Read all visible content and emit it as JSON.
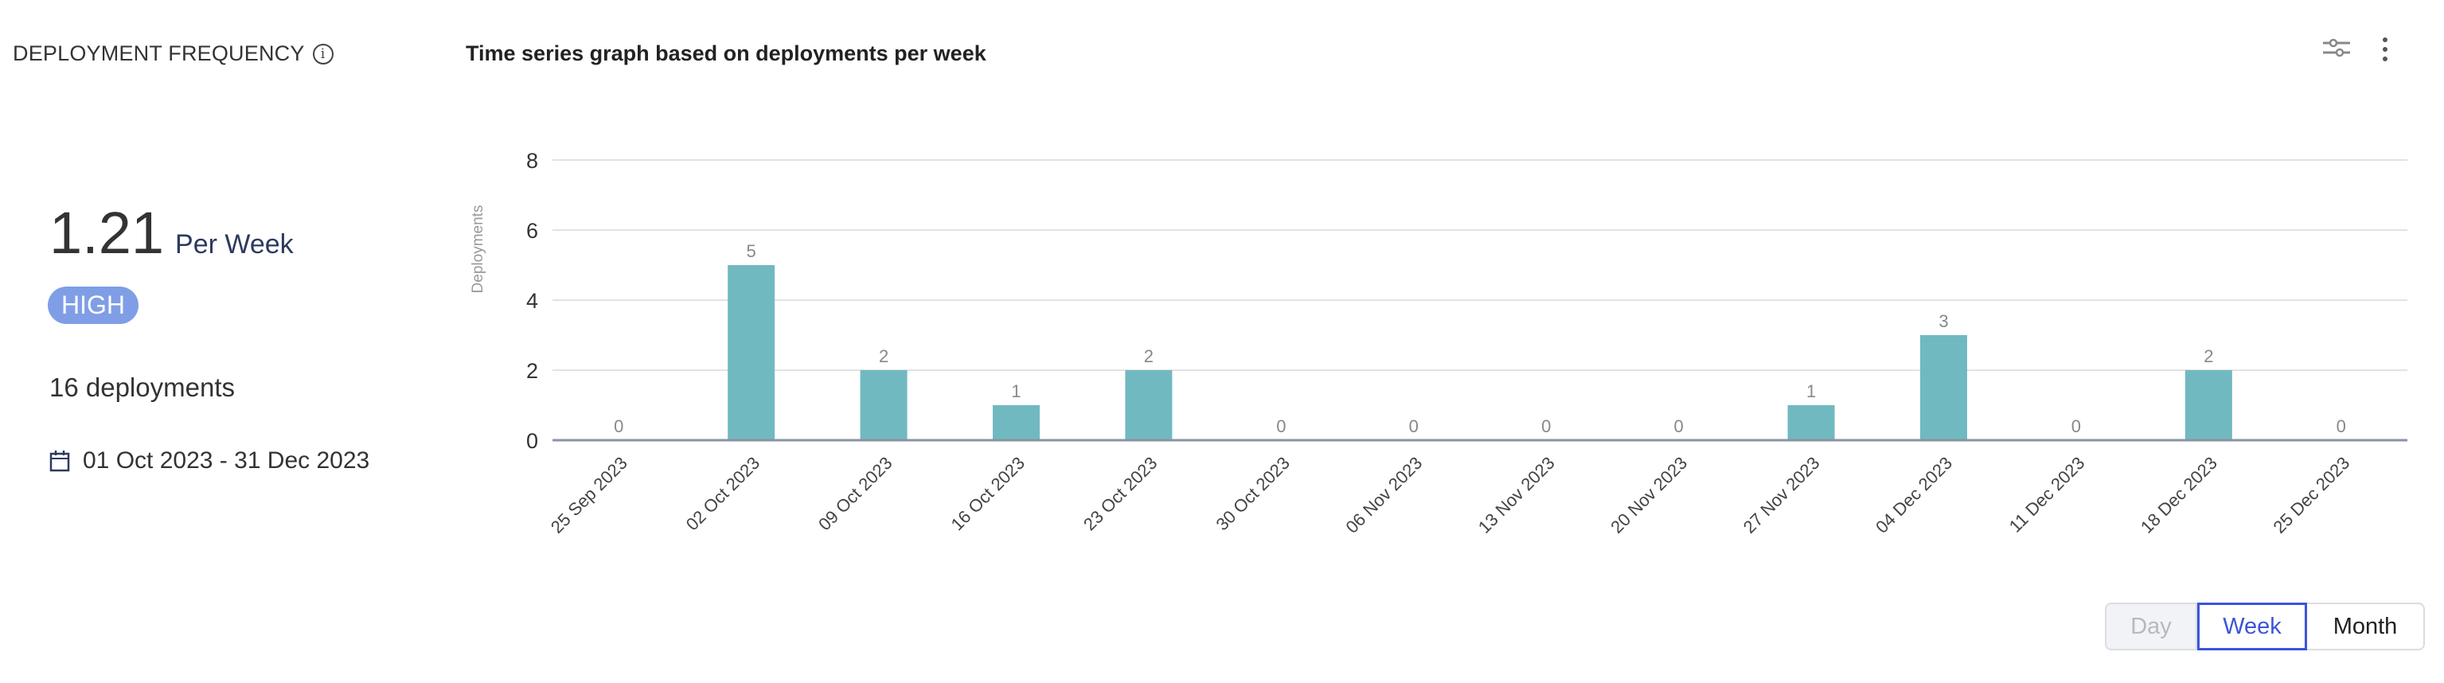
{
  "metric": {
    "title": "DEPLOYMENT FREQUENCY",
    "info_icon": "info-circle-icon",
    "value": "1.21",
    "unit": "Per Week",
    "badge": "HIGH",
    "badge_color": "#7f9ee6",
    "deployments": "16 deployments",
    "date_icon": "calendar-icon",
    "date_range": "01 Oct 2023 - 31 Dec 2023"
  },
  "header": {
    "chart_title": "Time series graph based on deployments per week",
    "filter_icon": "sliders-icon",
    "menu_icon": "kebab-menu-icon"
  },
  "toggle": {
    "options": [
      "Day",
      "Week",
      "Month"
    ],
    "selected": "Week"
  },
  "chart_data": {
    "type": "bar",
    "title": "Time series graph based on deployments per week",
    "xlabel": "",
    "ylabel": "Deployments",
    "ylim": [
      0,
      8
    ],
    "yticks": [
      0,
      2,
      4,
      6,
      8
    ],
    "grid": true,
    "bar_color": "#71b9c1",
    "categories": [
      "25 Sep 2023",
      "02 Oct 2023",
      "09 Oct 2023",
      "16 Oct 2023",
      "23 Oct 2023",
      "30 Oct 2023",
      "06 Nov 2023",
      "13 Nov 2023",
      "20 Nov 2023",
      "27 Nov 2023",
      "04 Dec 2023",
      "11 Dec 2023",
      "18 Dec 2023",
      "25 Dec 2023"
    ],
    "values": [
      0,
      5,
      2,
      1,
      2,
      0,
      0,
      0,
      0,
      1,
      3,
      0,
      2,
      0
    ]
  }
}
